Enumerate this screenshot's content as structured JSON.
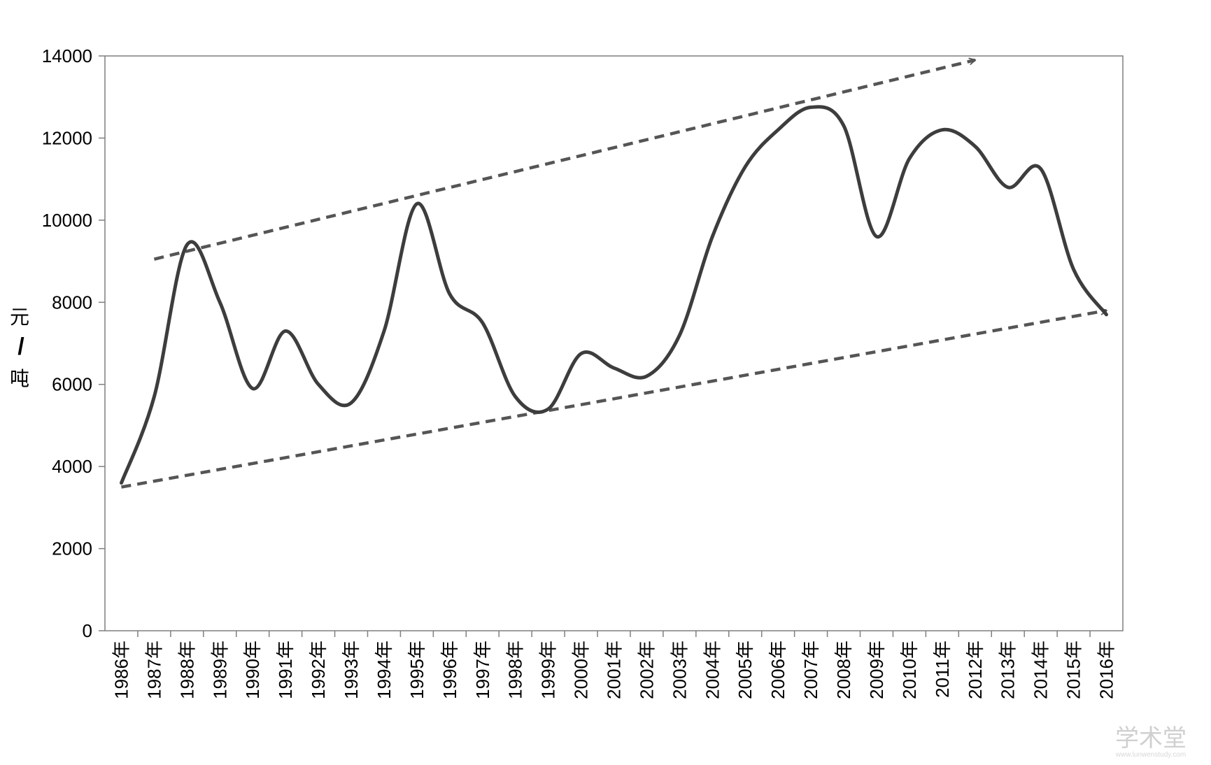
{
  "chart_data": {
    "type": "line",
    "title": "",
    "xlabel": "",
    "ylabel": "元/吨",
    "ylabel_parts": [
      "元",
      "/",
      "吨"
    ],
    "ylim": [
      0,
      14000
    ],
    "yticks": [
      "0",
      "2000",
      "4000",
      "6000",
      "8000",
      "10000",
      "12000",
      "14000"
    ],
    "categories": [
      "1986年",
      "1987年",
      "1988年",
      "1989年",
      "1990年",
      "1991年",
      "1992年",
      "1993年",
      "1994年",
      "1995年",
      "1996年",
      "1997年",
      "1998年",
      "1999年",
      "2000年",
      "2001年",
      "2002年",
      "2003年",
      "2004年",
      "2005年",
      "2006年",
      "2007年",
      "2008年",
      "2009年",
      "2010年",
      "2011年",
      "2012年",
      "2013年",
      "2014年",
      "2015年",
      "2016年"
    ],
    "series": [
      {
        "values": [
          3600,
          5700,
          9400,
          8000,
          5900,
          7300,
          6000,
          5550,
          7300,
          10400,
          8200,
          7500,
          5700,
          5400,
          6750,
          6400,
          6200,
          7200,
          9600,
          11300,
          12200,
          12750,
          12300,
          9600,
          11500,
          12200,
          11800,
          10800,
          11250,
          8800,
          7700
        ]
      }
    ],
    "trend_lines": [
      {
        "label": "upper",
        "from": {
          "x": "1987年",
          "y": 9050
        },
        "to": {
          "x": "2012年",
          "y": 13900
        }
      },
      {
        "label": "lower",
        "from": {
          "x": "1986年",
          "y": 3500
        },
        "to": {
          "x": "2016年",
          "y": 7800
        }
      }
    ],
    "grid": false,
    "legend": "none",
    "colors": {
      "line": "#3d3d3d",
      "trend": "#555555",
      "axis": "#7f7f7f"
    }
  },
  "watermark": {
    "main": "学术堂",
    "sub": "www.lunwenstudy.com"
  }
}
